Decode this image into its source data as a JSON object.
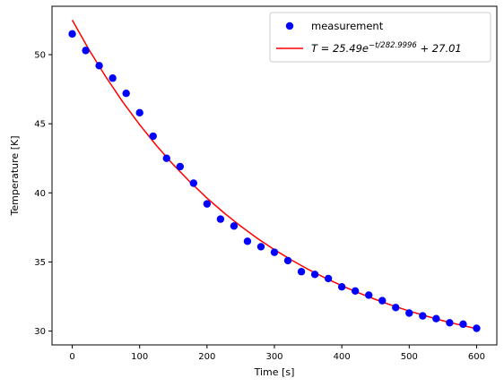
{
  "chart_data": {
    "type": "scatter",
    "title": "",
    "xlabel": "Time [s]",
    "ylabel": "Temperature [K]",
    "xlim": [
      -30,
      630
    ],
    "ylim": [
      29,
      53.5
    ],
    "x_ticks": [
      0,
      100,
      200,
      300,
      400,
      500,
      600
    ],
    "y_ticks": [
      30,
      35,
      40,
      45,
      50
    ],
    "grid": false,
    "legend": "top-right",
    "series": [
      {
        "name": "measurement",
        "kind": "points",
        "color": "#0000ff",
        "x": [
          0,
          20,
          40,
          60,
          80,
          100,
          120,
          140,
          160,
          180,
          200,
          220,
          240,
          260,
          280,
          300,
          320,
          340,
          360,
          380,
          400,
          420,
          440,
          460,
          480,
          500,
          520,
          540,
          560,
          580,
          600
        ],
        "y": [
          51.5,
          50.3,
          49.2,
          48.3,
          47.2,
          45.8,
          44.1,
          42.5,
          41.9,
          40.7,
          39.2,
          38.1,
          37.6,
          36.5,
          36.1,
          35.7,
          35.1,
          34.3,
          34.1,
          33.8,
          33.2,
          32.9,
          32.6,
          32.2,
          31.7,
          31.3,
          31.1,
          30.9,
          30.6,
          30.5,
          30.2
        ]
      },
      {
        "name_prefix": "T = 25.49e",
        "name_exponent": "−t/282.9996",
        "name_suffix": " + 27.01",
        "kind": "line",
        "color": "#ff0000",
        "x": [
          0,
          25,
          50,
          75,
          100,
          125,
          150,
          175,
          200,
          225,
          250,
          275,
          300,
          325,
          350,
          375,
          400,
          425,
          450,
          475,
          500,
          525,
          550,
          575,
          600
        ],
        "y": [
          52.5,
          50.35,
          48.38,
          46.58,
          44.93,
          43.42,
          42.04,
          40.78,
          39.62,
          38.56,
          37.59,
          36.7,
          35.89,
          35.15,
          34.47,
          33.85,
          33.28,
          32.76,
          32.29,
          31.85,
          31.45,
          31.09,
          30.75,
          30.45,
          30.17
        ]
      }
    ]
  }
}
